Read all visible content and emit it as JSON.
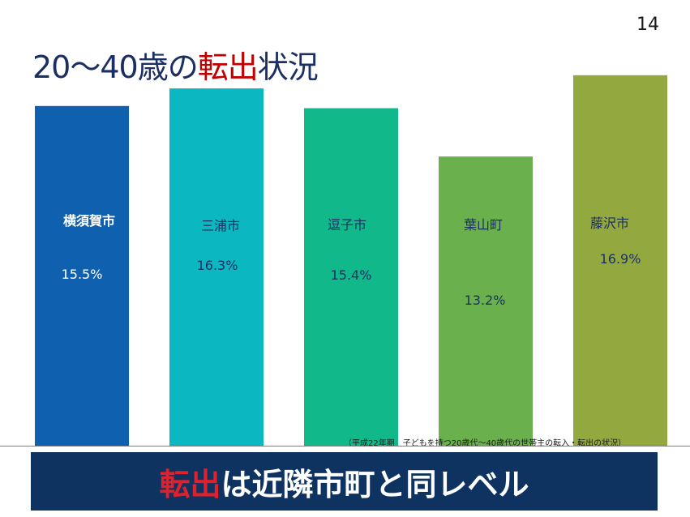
{
  "slide": {
    "page_number": "14",
    "title_prefix": "20～40歳の",
    "title_highlight": "転出",
    "title_suffix": "状況",
    "source_note": "（平成22年期　子どもを持つ20歳代～40歳代の世帯主の転入・転出の状況）",
    "banner_highlight": "転出",
    "banner_suffix": "は近隣市町と同レベル"
  },
  "colors": {
    "title": "#1c2f63",
    "highlight": "#c00000",
    "banner_bg": "#0e3360"
  },
  "chart_data": {
    "type": "bar",
    "categories": [
      "横須賀市",
      "三浦市",
      "逗子市",
      "葉山町",
      "藤沢市"
    ],
    "values": [
      15.5,
      16.3,
      15.4,
      13.2,
      16.9
    ],
    "value_labels": [
      "15.5%",
      "16.3%",
      "15.4%",
      "13.2%",
      "16.9%"
    ],
    "colors": [
      "#1060b0",
      "#0bb7c0",
      "#10b88a",
      "#6ab04c",
      "#93a93f"
    ],
    "label_colors": [
      "#ffffff",
      "#1c2f63",
      "#1c2f63",
      "#1c2f63",
      "#1c2f63"
    ],
    "label_bold": [
      true,
      false,
      false,
      false,
      false
    ],
    "unit": "%",
    "ylim": [
      0,
      17.3
    ],
    "title": "",
    "xlabel": "",
    "ylabel": ""
  }
}
